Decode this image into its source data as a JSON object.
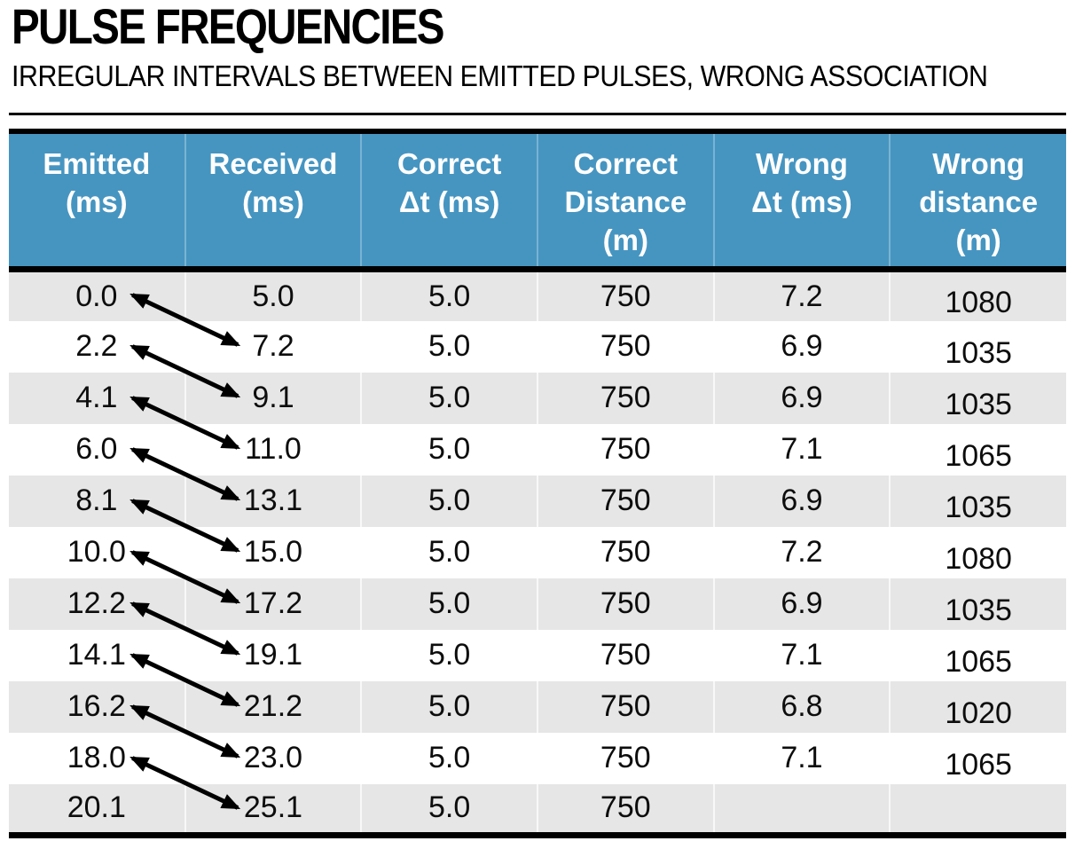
{
  "title": "PULSE FREQUENCIES",
  "subtitle": "IRREGULAR INTERVALS BETWEEN EMITTED PULSES, WRONG ASSOCIATION",
  "colors": {
    "header_bg": "#4695c1",
    "header_text": "#ffffff",
    "row_band_bg": "#e6e6e6",
    "row_bg": "#ffffff",
    "border": "#000000",
    "arrow": "#000000"
  },
  "table": {
    "columns": [
      {
        "id": "emitted",
        "label": "Emitted\n(ms)"
      },
      {
        "id": "received",
        "label": "Received\n(ms)"
      },
      {
        "id": "correct_dt",
        "label": "Correct\nΔt (ms)"
      },
      {
        "id": "correct_distance",
        "label": "Correct\nDistance\n(m)"
      },
      {
        "id": "wrong_dt",
        "label": "Wrong\nΔt (ms)"
      },
      {
        "id": "wrong_distance",
        "label": "Wrong\ndistance\n(m)"
      }
    ],
    "rows": [
      {
        "emitted": "0.0",
        "received": "5.0",
        "correct_dt": "5.0",
        "correct_distance": "750",
        "wrong_dt": "7.2",
        "wrong_distance": "1080"
      },
      {
        "emitted": "2.2",
        "received": "7.2",
        "correct_dt": "5.0",
        "correct_distance": "750",
        "wrong_dt": "6.9",
        "wrong_distance": "1035"
      },
      {
        "emitted": "4.1",
        "received": "9.1",
        "correct_dt": "5.0",
        "correct_distance": "750",
        "wrong_dt": "6.9",
        "wrong_distance": "1035"
      },
      {
        "emitted": "6.0",
        "received": "11.0",
        "correct_dt": "5.0",
        "correct_distance": "750",
        "wrong_dt": "7.1",
        "wrong_distance": "1065"
      },
      {
        "emitted": "8.1",
        "received": "13.1",
        "correct_dt": "5.0",
        "correct_distance": "750",
        "wrong_dt": "6.9",
        "wrong_distance": "1035"
      },
      {
        "emitted": "10.0",
        "received": "15.0",
        "correct_dt": "5.0",
        "correct_distance": "750",
        "wrong_dt": "7.2",
        "wrong_distance": "1080"
      },
      {
        "emitted": "12.2",
        "received": "17.2",
        "correct_dt": "5.0",
        "correct_distance": "750",
        "wrong_dt": "6.9",
        "wrong_distance": "1035"
      },
      {
        "emitted": "14.1",
        "received": "19.1",
        "correct_dt": "5.0",
        "correct_distance": "750",
        "wrong_dt": "7.1",
        "wrong_distance": "1065"
      },
      {
        "emitted": "16.2",
        "received": "21.2",
        "correct_dt": "5.0",
        "correct_distance": "750",
        "wrong_dt": "6.8",
        "wrong_distance": "1020"
      },
      {
        "emitted": "18.0",
        "received": "23.0",
        "correct_dt": "5.0",
        "correct_distance": "750",
        "wrong_dt": "7.1",
        "wrong_distance": "1065"
      },
      {
        "emitted": "20.1",
        "received": "25.1",
        "correct_dt": "5.0",
        "correct_distance": "750",
        "wrong_dt": "",
        "wrong_distance": ""
      }
    ]
  },
  "arrows": [
    {
      "from_row": 0,
      "to_row": 1
    },
    {
      "from_row": 1,
      "to_row": 2
    },
    {
      "from_row": 2,
      "to_row": 3
    },
    {
      "from_row": 3,
      "to_row": 4
    },
    {
      "from_row": 4,
      "to_row": 5
    },
    {
      "from_row": 5,
      "to_row": 6
    },
    {
      "from_row": 6,
      "to_row": 7
    },
    {
      "from_row": 7,
      "to_row": 8
    },
    {
      "from_row": 8,
      "to_row": 9
    },
    {
      "from_row": 9,
      "to_row": 10
    }
  ]
}
